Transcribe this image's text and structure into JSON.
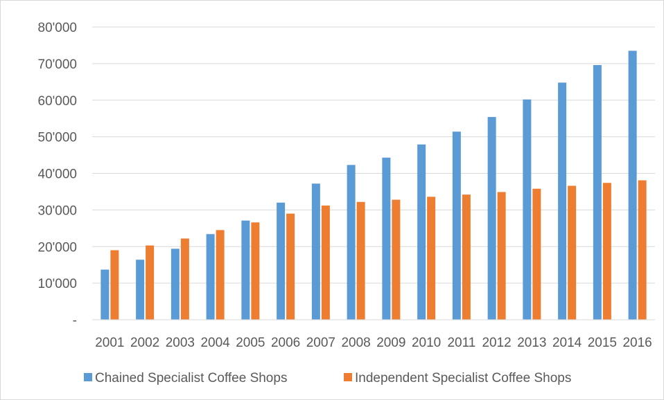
{
  "chart_data": {
    "type": "bar",
    "title": "",
    "xlabel": "",
    "ylabel": "",
    "categories": [
      "2001",
      "2002",
      "2003",
      "2004",
      "2005",
      "2006",
      "2007",
      "2008",
      "2009",
      "2010",
      "2011",
      "2012",
      "2013",
      "2014",
      "2015",
      "2016"
    ],
    "series": [
      {
        "name": "Chained Specialist Coffee Shops",
        "color": "#5b9bd5",
        "values": [
          13700,
          16400,
          19400,
          23400,
          27100,
          32000,
          37200,
          42300,
          44300,
          47900,
          51400,
          55400,
          60200,
          64800,
          69600,
          73500
        ]
      },
      {
        "name": "Independent Specialist Coffee Shops",
        "color": "#ed7d31",
        "values": [
          19000,
          20300,
          22200,
          24500,
          26600,
          29000,
          31200,
          32200,
          32800,
          33600,
          34200,
          34900,
          35800,
          36600,
          37400,
          38100
        ]
      }
    ],
    "ylim": [
      0,
      80000
    ],
    "y_ticks": [
      {
        "value": 0,
        "label": "-"
      },
      {
        "value": 10000,
        "label": "10'000"
      },
      {
        "value": 20000,
        "label": "20'000"
      },
      {
        "value": 30000,
        "label": "30'000"
      },
      {
        "value": 40000,
        "label": "40'000"
      },
      {
        "value": 50000,
        "label": "50'000"
      },
      {
        "value": 60000,
        "label": "60'000"
      },
      {
        "value": 70000,
        "label": "70'000"
      },
      {
        "value": 80000,
        "label": "80'000"
      }
    ],
    "grid": true,
    "legend_position": "bottom"
  }
}
